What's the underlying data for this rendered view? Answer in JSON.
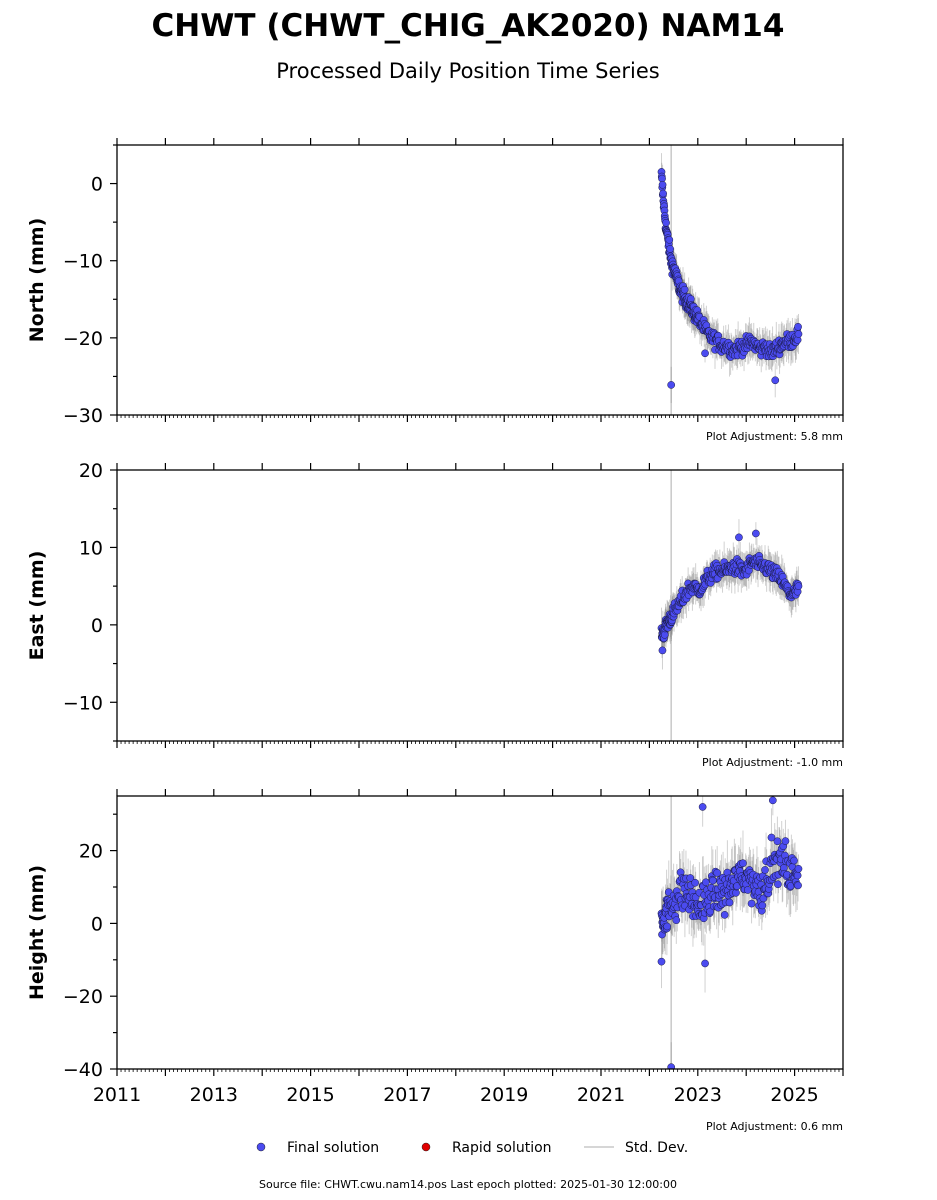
{
  "header": {
    "title": "CHWT (CHWT_CHIG_AK2020) NAM14",
    "subtitle": "Processed Daily Position Time Series"
  },
  "legend": {
    "final_label": "Final solution",
    "rapid_label": "Rapid solution",
    "std_label": "Std. Dev.",
    "final_color": "#4b4bf0",
    "rapid_color": "#e00000",
    "std_color": "#c8c8c8"
  },
  "footer": {
    "text": "Source file: CHWT.cwu.nam14.pos  Last epoch plotted: 2025-01-30 12:00:00"
  },
  "chart_data": [
    {
      "type": "scatter",
      "ylabel": "North (mm)",
      "ylim": [
        -30,
        5
      ],
      "yticks": [
        0,
        -10,
        -20,
        -30
      ],
      "xlim": [
        2011,
        2026
      ],
      "xticks": [],
      "adjustment": "Plot Adjustment: 5.8 mm",
      "equipment_change": 2022.45,
      "series": [
        {
          "x": [
            2022.25,
            2022.3,
            2022.35,
            2022.4,
            2022.45,
            2022.5,
            2022.55,
            2022.6,
            2022.65,
            2022.7,
            2022.75,
            2022.8,
            2022.85,
            2022.9,
            2022.95,
            2023.0,
            2023.1,
            2023.2,
            2023.3,
            2023.4,
            2023.5,
            2023.6,
            2023.7,
            2023.8,
            2023.9,
            2024.0,
            2024.1,
            2024.2,
            2024.3,
            2024.4,
            2024.5,
            2024.6,
            2024.7,
            2024.8,
            2024.9,
            2025.0,
            2025.08
          ],
          "y": [
            1,
            -3,
            -6,
            -8,
            -10,
            -11,
            -12,
            -13,
            -14,
            -14.5,
            -15,
            -15.5,
            -16,
            -16.5,
            -17,
            -17.5,
            -18.5,
            -19.5,
            -20,
            -20.5,
            -21,
            -21,
            -21.5,
            -21.5,
            -21,
            -21,
            -20.5,
            -21,
            -21.5,
            -21,
            -22,
            -21.5,
            -21,
            -20.5,
            -20.5,
            -20,
            -19.5
          ],
          "outliers": [
            [
              2022.45,
              -26.1
            ],
            [
              2023.15,
              -22
            ],
            [
              2024.6,
              -25.5
            ]
          ]
        }
      ]
    },
    {
      "type": "scatter",
      "ylabel": "East (mm)",
      "ylim": [
        -15,
        20
      ],
      "yticks": [
        20,
        10,
        0,
        -10
      ],
      "xlim": [
        2011,
        2026
      ],
      "xticks": [],
      "adjustment": "Plot Adjustment: -1.0 mm",
      "equipment_change": 2022.45,
      "series": [
        {
          "x": [
            2022.25,
            2022.3,
            2022.35,
            2022.4,
            2022.45,
            2022.5,
            2022.6,
            2022.7,
            2022.8,
            2022.9,
            2023.0,
            2023.1,
            2023.2,
            2023.3,
            2023.4,
            2023.5,
            2023.6,
            2023.7,
            2023.8,
            2023.9,
            2024.0,
            2024.1,
            2024.2,
            2024.3,
            2024.4,
            2024.5,
            2024.6,
            2024.7,
            2024.8,
            2024.9,
            2025.0,
            2025.08
          ],
          "y": [
            -1,
            -1,
            0,
            0.5,
            1,
            1.5,
            2.5,
            3.5,
            4.5,
            5,
            4.5,
            5,
            6,
            6.5,
            7,
            7,
            7,
            7.5,
            7.5,
            7,
            7,
            8,
            8,
            7.5,
            7.5,
            7,
            6.5,
            6,
            5,
            4,
            4,
            5
          ],
          "outliers": [
            [
              2022.27,
              -3.3
            ],
            [
              2023.85,
              11.3
            ],
            [
              2024.2,
              11.8
            ]
          ]
        }
      ]
    },
    {
      "type": "scatter",
      "ylabel": "Height (mm)",
      "ylim": [
        -40,
        35
      ],
      "yticks": [
        20,
        0,
        -20,
        -40
      ],
      "xlim": [
        2011,
        2026
      ],
      "xticks": [
        "2011",
        "2013",
        "2015",
        "2017",
        "2019",
        "2021",
        "2023",
        "2025"
      ],
      "adjustment": "Plot Adjustment: 0.6 mm",
      "equipment_change": 2022.45,
      "series": [
        {
          "x": [
            2022.25,
            2022.3,
            2022.35,
            2022.4,
            2022.5,
            2022.6,
            2022.7,
            2022.8,
            2022.9,
            2023.0,
            2023.1,
            2023.2,
            2023.3,
            2023.4,
            2023.5,
            2023.6,
            2023.7,
            2023.8,
            2023.9,
            2024.0,
            2024.1,
            2024.2,
            2024.3,
            2024.4,
            2024.5,
            2024.6,
            2024.7,
            2024.8,
            2024.9,
            2025.0,
            2025.08
          ],
          "y": [
            0,
            2,
            3,
            4,
            6,
            8,
            9,
            8,
            6,
            5,
            5,
            6,
            8,
            9,
            8,
            9,
            10,
            12,
            13,
            13,
            12,
            10,
            9,
            12,
            15,
            17,
            17,
            16,
            14,
            13,
            15
          ],
          "outliers": [
            [
              2022.45,
              -39.5
            ],
            [
              2022.25,
              -10.5
            ],
            [
              2023.1,
              32
            ],
            [
              2024.55,
              33.8
            ],
            [
              2023.15,
              -11
            ]
          ]
        }
      ]
    }
  ]
}
